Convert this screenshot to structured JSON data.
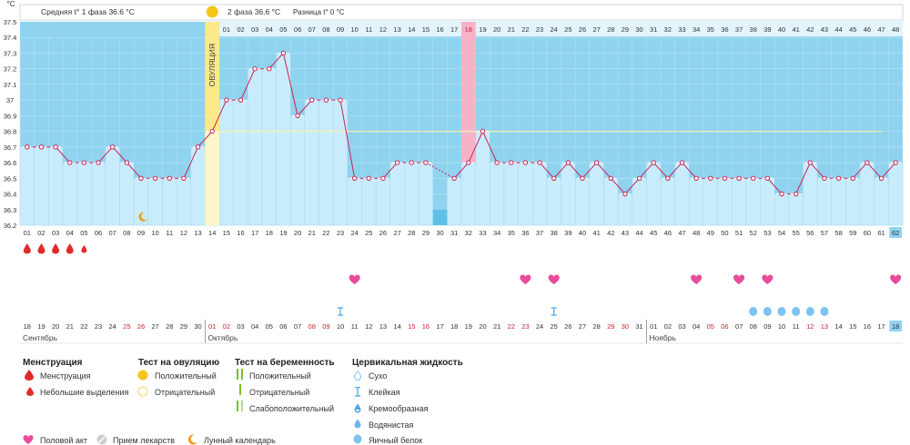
{
  "chart_data": {
    "type": "line",
    "y_unit": "°C",
    "ylim": [
      36.2,
      37.5
    ],
    "y_ticks": [
      "37.5",
      "37.4",
      "37.3",
      "37.2",
      "37.1",
      "37",
      "36.9",
      "36.8",
      "36.7",
      "36.6",
      "36.5",
      "36.4",
      "36.3",
      "36.2"
    ],
    "cycle_days": [
      "01",
      "02",
      "03",
      "04",
      "05",
      "06",
      "07",
      "08",
      "09",
      "10",
      "11",
      "12",
      "13",
      "14",
      "15",
      "16",
      "17",
      "18",
      "19",
      "20",
      "21",
      "22",
      "23",
      "24",
      "25",
      "26",
      "27",
      "28",
      "29",
      "30",
      "31",
      "32",
      "33",
      "34",
      "35",
      "36",
      "37",
      "38",
      "39",
      "40",
      "41",
      "42",
      "43",
      "44",
      "45",
      "46",
      "47",
      "48",
      "49",
      "50",
      "51",
      "52",
      "53",
      "54",
      "55",
      "56",
      "57",
      "58",
      "59",
      "60",
      "61",
      "62"
    ],
    "dates": [
      "18",
      "19",
      "20",
      "21",
      "22",
      "23",
      "24",
      "25",
      "26",
      "27",
      "28",
      "29",
      "30",
      "01",
      "02",
      "03",
      "04",
      "05",
      "06",
      "07",
      "08",
      "09",
      "10",
      "11",
      "12",
      "13",
      "14",
      "15",
      "16",
      "17",
      "18",
      "19",
      "20",
      "21",
      "22",
      "23",
      "24",
      "25",
      "26",
      "27",
      "28",
      "29",
      "30",
      "31",
      "01",
      "02",
      "03",
      "04",
      "05",
      "06",
      "07",
      "08",
      "09",
      "10",
      "11",
      "12",
      "13",
      "14",
      "15",
      "16",
      "17",
      "18"
    ],
    "weekend_dates_idx": [
      7,
      8,
      13,
      14,
      20,
      21,
      27,
      28,
      34,
      35,
      41,
      42,
      48,
      49,
      55,
      56
    ],
    "months": [
      {
        "label": "Сентябрь",
        "start": 0
      },
      {
        "label": "Октябрь",
        "start": 13
      },
      {
        "label": "Ноябрь",
        "start": 44
      }
    ],
    "phase2_days": [
      "01",
      "02",
      "03",
      "04",
      "05",
      "06",
      "07",
      "08",
      "09",
      "10",
      "11",
      "12",
      "13",
      "14",
      "15",
      "16",
      "17",
      "18",
      "19",
      "20",
      "21",
      "22",
      "23",
      "24",
      "25",
      "26",
      "27",
      "28",
      "29",
      "30",
      "31",
      "32",
      "33",
      "34",
      "35",
      "36",
      "37",
      "38",
      "39",
      "40",
      "41",
      "42",
      "43",
      "44",
      "45",
      "46",
      "47",
      "48"
    ],
    "series": [
      {
        "values": [
          36.7,
          36.7,
          36.7,
          36.6,
          36.6,
          36.6,
          36.7,
          36.6,
          36.5,
          36.5,
          36.5,
          36.5,
          36.7,
          36.8,
          37.0,
          37.0,
          37.2,
          37.2,
          37.3,
          36.9,
          37.0,
          37.0,
          37.0,
          36.5,
          36.5,
          36.5,
          36.6,
          36.6,
          36.6,
          null,
          36.5,
          36.6,
          36.8,
          36.6,
          36.6,
          36.6,
          36.6,
          36.5,
          36.6,
          36.5,
          36.6,
          36.5,
          36.4,
          36.5,
          36.6,
          36.5,
          36.6,
          36.5,
          36.5,
          36.5,
          36.5,
          36.5,
          36.5,
          36.4,
          36.4,
          36.6,
          36.5,
          36.5,
          36.5,
          36.6,
          36.5,
          36.6
        ]
      }
    ],
    "coverline": 36.8,
    "ovulation_day_idx": 13,
    "ovulation_label": "ОВУЛЯЦИЯ",
    "highlight_day_idx": 31,
    "gap_idx": 29,
    "menstruation_heavy_idx": [
      0,
      1,
      2,
      3
    ],
    "menstruation_light_idx": [
      4
    ],
    "intercourse_idx": [
      23,
      35,
      37,
      47,
      50,
      52,
      61
    ],
    "sticky_idx": [
      22,
      37
    ],
    "eggwhite_idx": [
      51,
      52,
      53,
      54,
      55,
      56
    ],
    "moon_idx": 8,
    "current_day_idx": 61
  },
  "header": {
    "phase1": "Средняя t° 1 фаза 36.6 °С",
    "phase2": "2 фаза 36.6 °С",
    "difference": "Разница t° 0 °С"
  },
  "legend": {
    "menstruation": {
      "title": "Менструация",
      "heavy": "Менструация",
      "light": "Небольшие выделения"
    },
    "ovulation_test": {
      "title": "Тест на овуляцию",
      "positive": "Положительный",
      "negative": "Отрицательный"
    },
    "pregnancy_test": {
      "title": "Тест на беременность",
      "positive": "Положительный",
      "negative": "Отрицательный",
      "faint": "Слабоположительный"
    },
    "cervical": {
      "title": "Цервикальная жидкость",
      "dry": "Сухо",
      "sticky": "Клейкая",
      "creamy": "Кремообразная",
      "watery": "Водянистая",
      "eggwhite": "Яичный белок"
    },
    "bottom": {
      "intercourse": "Половой акт",
      "medication": "Прием лекарств",
      "moon": "Лунный календарь"
    }
  },
  "colors": {
    "sky": "#8fd3ef",
    "column": "#c8ecfb",
    "line": "#cc2255",
    "ovulation": "#fbe98a",
    "highlight": "#f6b3c8",
    "coverline": "#f5f0b0",
    "weekend": "#cc2233",
    "heart": "#e84c9b",
    "drop": "#e02a2a",
    "eggwhite": "#7cc4ef"
  }
}
